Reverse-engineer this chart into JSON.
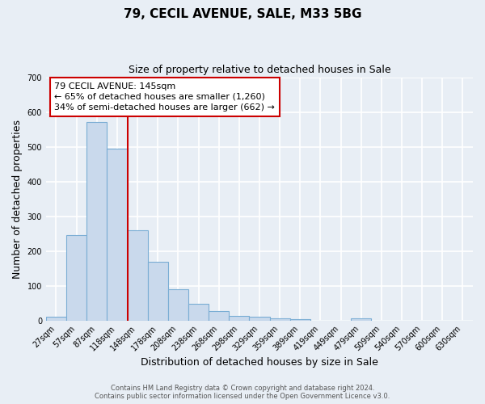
{
  "title": "79, CECIL AVENUE, SALE, M33 5BG",
  "subtitle": "Size of property relative to detached houses in Sale",
  "xlabel": "Distribution of detached houses by size in Sale",
  "ylabel": "Number of detached properties",
  "bar_labels": [
    "27sqm",
    "57sqm",
    "87sqm",
    "118sqm",
    "148sqm",
    "178sqm",
    "208sqm",
    "238sqm",
    "268sqm",
    "298sqm",
    "329sqm",
    "359sqm",
    "389sqm",
    "419sqm",
    "449sqm",
    "479sqm",
    "509sqm",
    "540sqm",
    "570sqm",
    "600sqm",
    "630sqm"
  ],
  "bar_values": [
    12,
    245,
    572,
    495,
    260,
    170,
    90,
    47,
    27,
    14,
    10,
    7,
    5,
    0,
    0,
    7,
    0,
    0,
    0,
    0,
    0
  ],
  "bar_color": "#c9d9ec",
  "bar_edge_color": "#7aadd4",
  "ylim": [
    0,
    700
  ],
  "yticks": [
    0,
    100,
    200,
    300,
    400,
    500,
    600,
    700
  ],
  "vline_color": "#cc0000",
  "annotation_title": "79 CECIL AVENUE: 145sqm",
  "annotation_line1": "← 65% of detached houses are smaller (1,260)",
  "annotation_line2": "34% of semi-detached houses are larger (662) →",
  "annotation_box_facecolor": "#ffffff",
  "annotation_box_edgecolor": "#cc0000",
  "footer1": "Contains HM Land Registry data © Crown copyright and database right 2024.",
  "footer2": "Contains public sector information licensed under the Open Government Licence v3.0.",
  "background_color": "#e8eef5",
  "grid_color": "#ffffff",
  "title_fontsize": 11,
  "subtitle_fontsize": 9,
  "axis_label_fontsize": 9,
  "tick_fontsize": 7,
  "annotation_fontsize": 8,
  "footer_fontsize": 6
}
